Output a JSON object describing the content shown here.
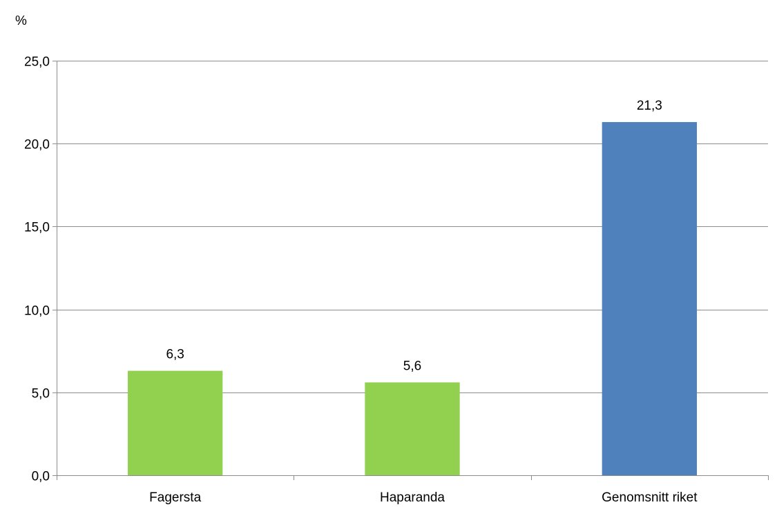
{
  "chart_data": {
    "type": "bar",
    "unit_label": "%",
    "categories": [
      "Fagersta",
      "Haparanda",
      "Genomsnitt riket"
    ],
    "values": [
      6.3,
      5.6,
      21.3
    ],
    "value_labels": [
      "6,3",
      "5,6",
      "21,3"
    ],
    "bar_colors": [
      "#92d050",
      "#92d050",
      "#4f81bd"
    ],
    "y_ticks": [
      0,
      5,
      10,
      15,
      20,
      25
    ],
    "y_tick_labels": [
      "0,0",
      "5,0",
      "10,0",
      "15,0",
      "20,0",
      "25,0"
    ],
    "ylim": [
      0,
      25
    ],
    "grid": true,
    "legend": "none"
  }
}
